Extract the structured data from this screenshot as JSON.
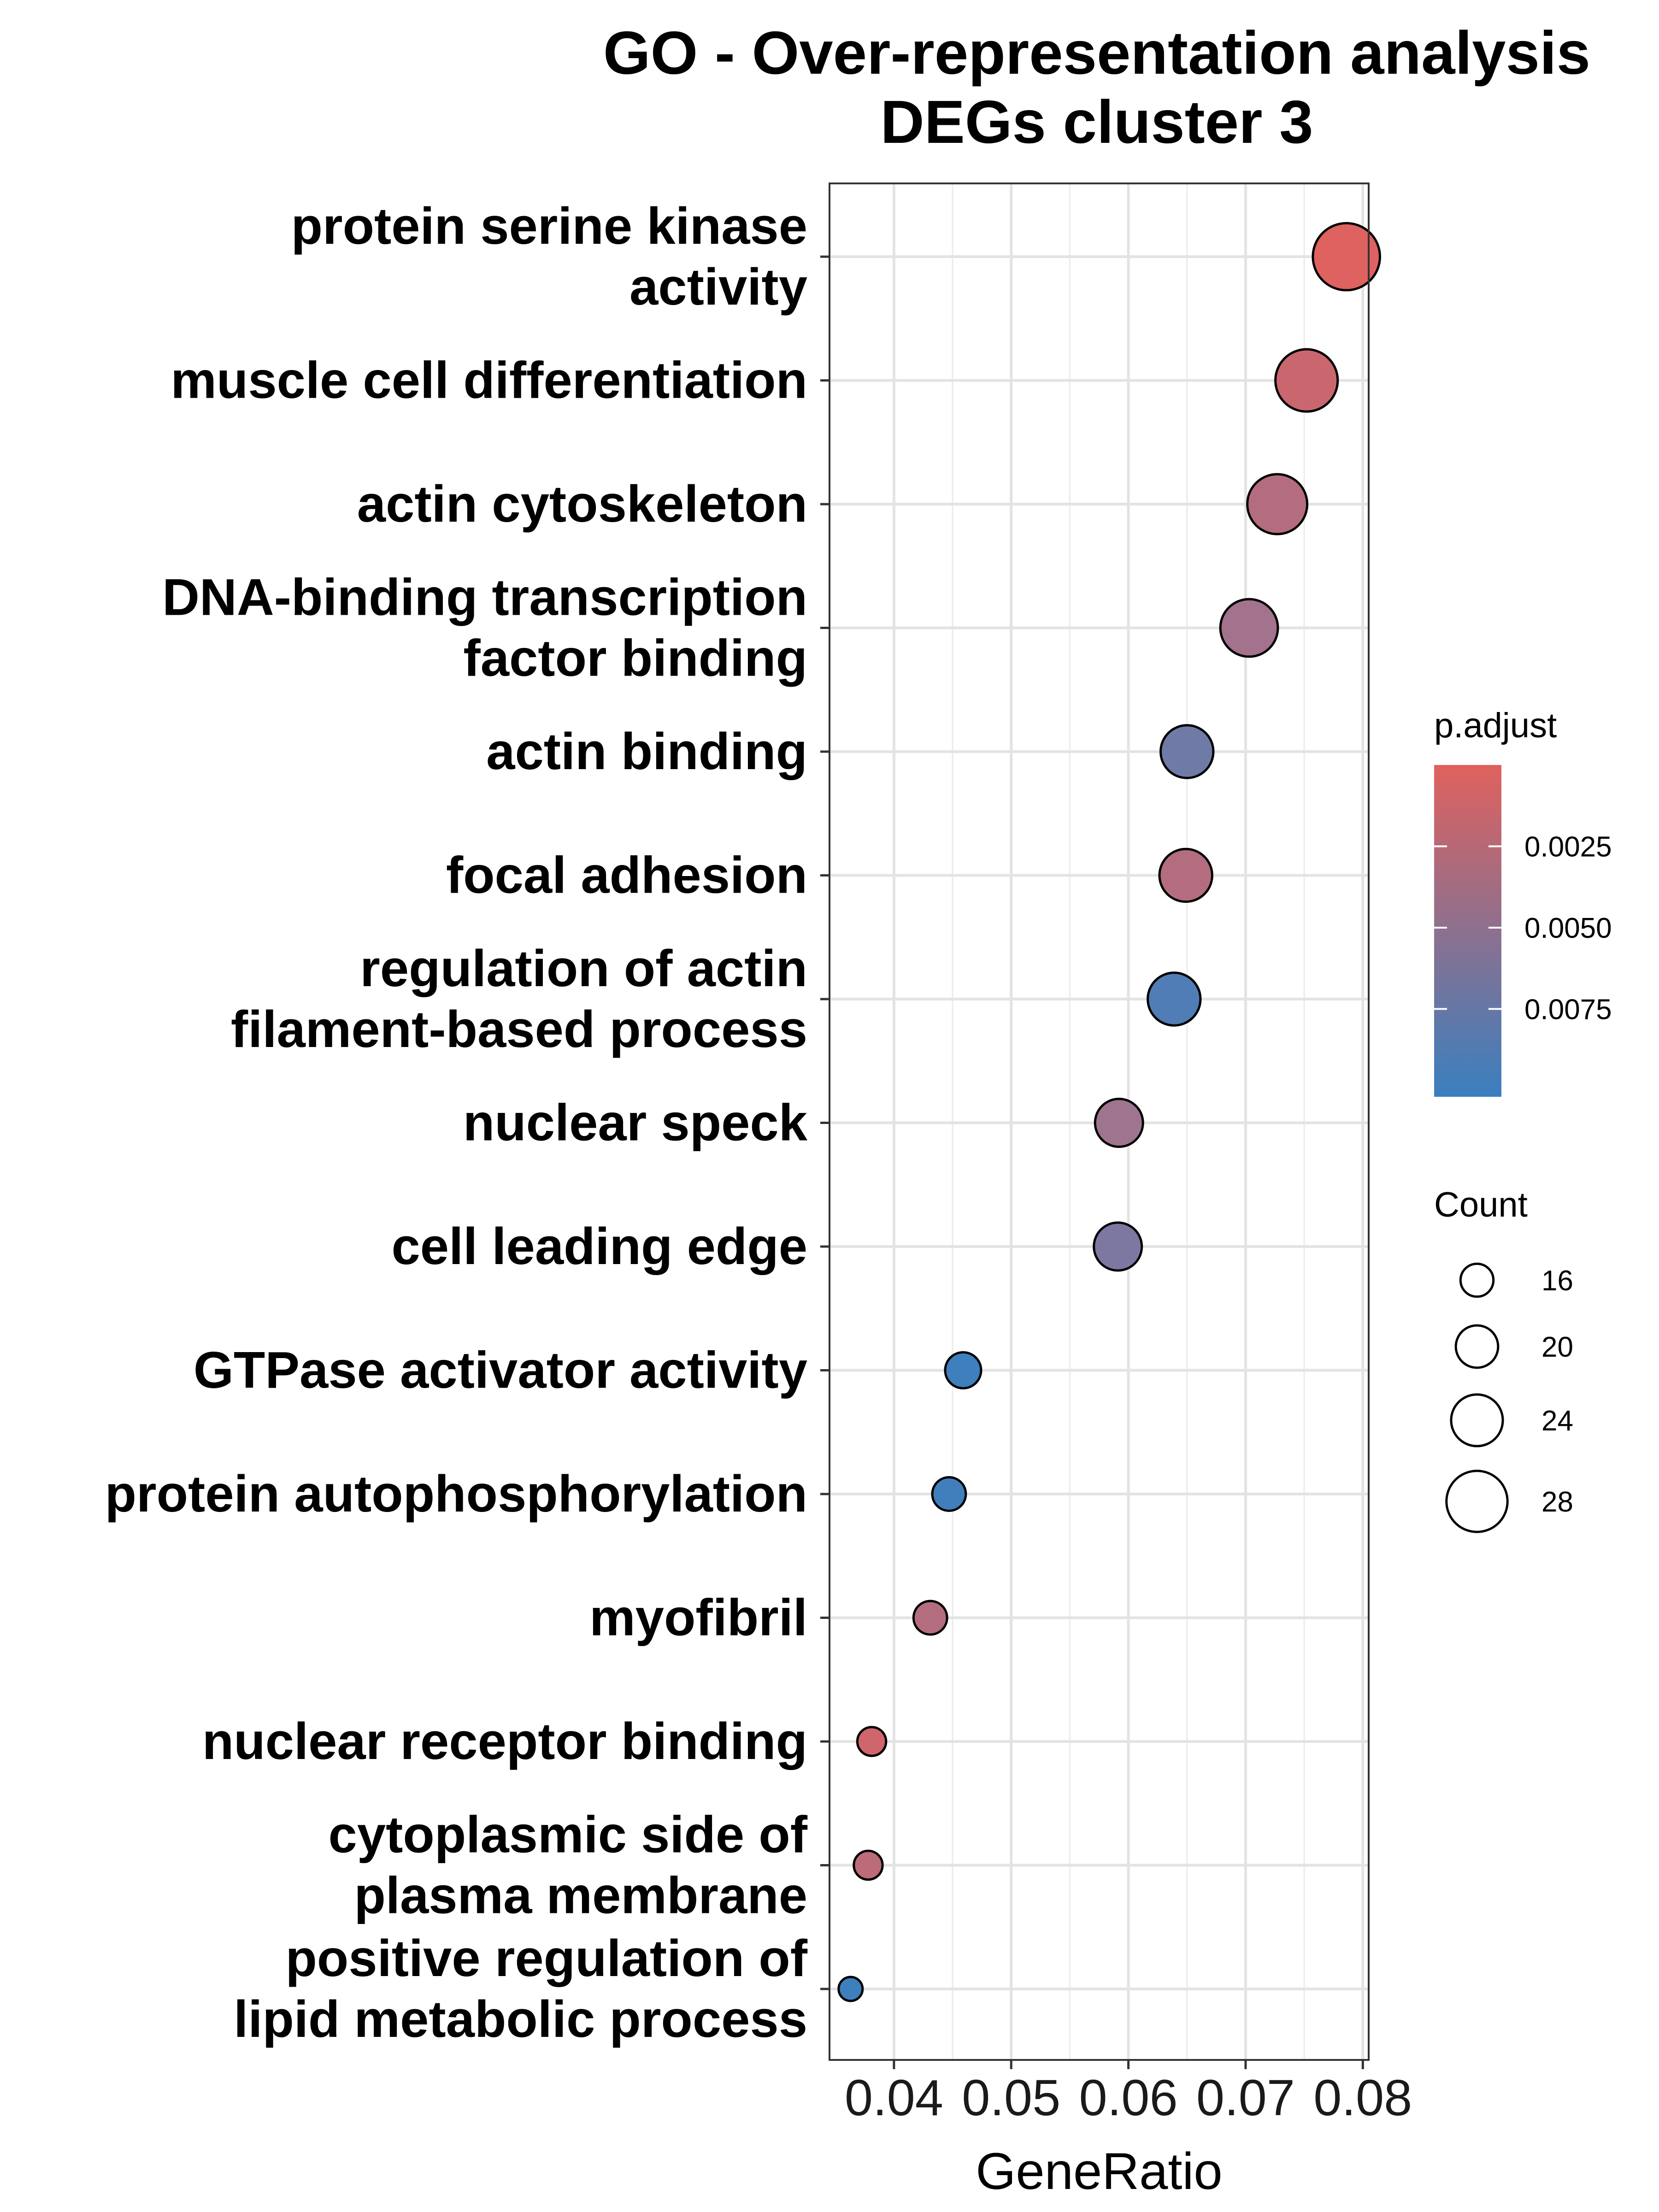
{
  "chart_data": {
    "type": "scatter",
    "title": [
      "GO - Over-representation analysis",
      "DEGs cluster 3"
    ],
    "xlabel": "GeneRatio",
    "ylabel": "",
    "xlim": [
      0.0345,
      0.0805
    ],
    "xticks": [
      0.04,
      0.05,
      0.06,
      0.07,
      0.08
    ],
    "xtick_labels": [
      "0.04",
      "0.05",
      "0.06",
      "0.07",
      "0.08"
    ],
    "grid": true,
    "legend_position": "right",
    "categories": [
      [
        "protein serine kinase",
        "activity"
      ],
      [
        "muscle cell differentiation"
      ],
      [
        "actin cytoskeleton"
      ],
      [
        "DNA-binding transcription",
        "factor binding"
      ],
      [
        "actin binding"
      ],
      [
        "focal adhesion"
      ],
      [
        "regulation of actin",
        "filament-based process"
      ],
      [
        "nuclear speck"
      ],
      [
        "cell leading edge"
      ],
      [
        "GTPase activator activity"
      ],
      [
        "protein autophosphorylation"
      ],
      [
        "myofibril"
      ],
      [
        "nuclear receptor binding"
      ],
      [
        "cytoplasmic side of",
        "plasma membrane"
      ],
      [
        "positive regulation of",
        "lipid metabolic process"
      ]
    ],
    "points": [
      {
        "x": 0.0786,
        "count": 30,
        "p_adjust": 0.0002
      },
      {
        "x": 0.0752,
        "count": 28,
        "p_adjust": 0.0015
      },
      {
        "x": 0.0727,
        "count": 27,
        "p_adjust": 0.003
      },
      {
        "x": 0.0703,
        "count": 26,
        "p_adjust": 0.0042
      },
      {
        "x": 0.065,
        "count": 24,
        "p_adjust": 0.0072
      },
      {
        "x": 0.0649,
        "count": 24,
        "p_adjust": 0.003
      },
      {
        "x": 0.0639,
        "count": 24,
        "p_adjust": 0.009
      },
      {
        "x": 0.0592,
        "count": 22,
        "p_adjust": 0.0045
      },
      {
        "x": 0.0591,
        "count": 22,
        "p_adjust": 0.0065
      },
      {
        "x": 0.0459,
        "count": 17,
        "p_adjust": 0.01
      },
      {
        "x": 0.0447,
        "count": 16,
        "p_adjust": 0.0098
      },
      {
        "x": 0.0431,
        "count": 16,
        "p_adjust": 0.003
      },
      {
        "x": 0.0381,
        "count": 14,
        "p_adjust": 0.0012
      },
      {
        "x": 0.0378,
        "count": 14,
        "p_adjust": 0.0025
      },
      {
        "x": 0.0363,
        "count": 12,
        "p_adjust": 0.01
      }
    ],
    "color_legend": {
      "title": "p.adjust",
      "range": [
        0.0,
        0.0102
      ],
      "ticks": [
        0.0025,
        0.005,
        0.0075
      ],
      "tick_labels": [
        "0.0025",
        "0.0050",
        "0.0075"
      ],
      "low_color": "#e0615e",
      "high_color": "#3a7fbf"
    },
    "size_legend": {
      "title": "Count",
      "values": [
        16,
        20,
        24,
        28
      ],
      "labels": [
        "16",
        "20",
        "24",
        "28"
      ]
    }
  }
}
